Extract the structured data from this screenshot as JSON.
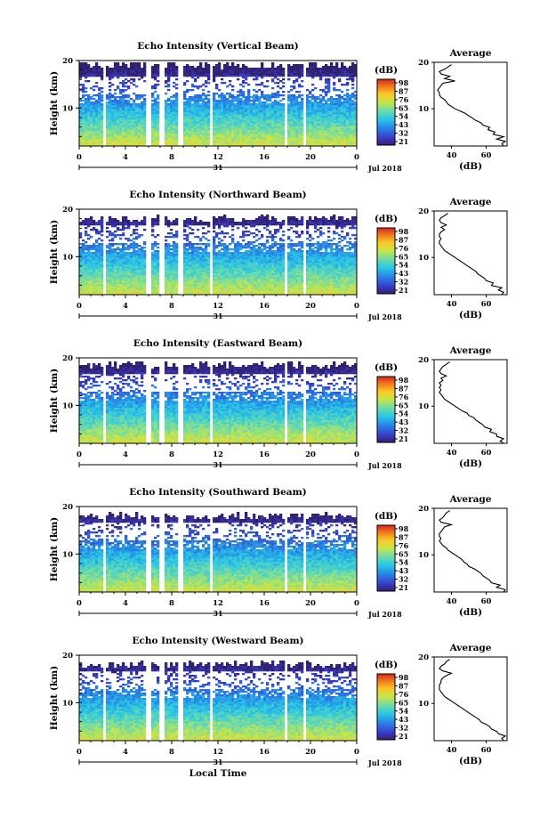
{
  "chart_data": [
    {
      "type": "heatmap",
      "title": "Echo Intensity (Vertical Beam)",
      "ylabel": "Height (km)",
      "ylim": [
        2,
        20
      ],
      "yticks": [
        "20",
        "10"
      ],
      "xticks": [
        "0",
        "4",
        "8",
        "12",
        "16",
        "20",
        "0"
      ],
      "xlim": [
        0,
        24
      ],
      "date_day": "31",
      "date_label": "Jul 2018",
      "colorbar_label": "(dB)",
      "colorbar_ticks": [
        "98",
        "87",
        "76",
        "65",
        "54",
        "43",
        "32",
        "21"
      ],
      "colorbar_range": [
        21,
        98
      ],
      "data_gaps_hours": [
        [
          2.1,
          2.4
        ],
        [
          5.8,
          6.3
        ],
        [
          6.9,
          7.3
        ],
        [
          8.6,
          9.0
        ],
        [
          11.2,
          11.5
        ],
        [
          17.7,
          18.0
        ],
        [
          19.4,
          19.7
        ]
      ],
      "echo_top_km": 19.5,
      "profile": {
        "title": "Average",
        "xlabel": "(dB)",
        "xticks": [
          "40",
          "60"
        ],
        "xlim": [
          30,
          72
        ],
        "ylim": [
          2,
          20
        ],
        "yticks": [
          "20",
          "10"
        ],
        "points": [
          [
            70,
            2
          ],
          [
            69,
            2.5
          ],
          [
            71,
            3
          ],
          [
            66,
            3.5
          ],
          [
            70,
            4
          ],
          [
            64,
            4.5
          ],
          [
            65,
            5
          ],
          [
            61,
            5.5
          ],
          [
            62,
            6
          ],
          [
            58,
            6.5
          ],
          [
            57,
            7
          ],
          [
            54,
            7.5
          ],
          [
            52,
            8
          ],
          [
            50,
            8.5
          ],
          [
            48,
            9
          ],
          [
            45,
            9.5
          ],
          [
            42,
            10
          ],
          [
            40,
            10.5
          ],
          [
            38,
            11
          ],
          [
            37,
            11.5
          ],
          [
            36,
            12
          ],
          [
            34,
            12.5
          ],
          [
            33,
            13
          ],
          [
            33,
            13.5
          ],
          [
            32,
            14
          ],
          [
            33,
            14.5
          ],
          [
            34,
            15
          ],
          [
            35,
            15.5
          ],
          [
            42,
            16
          ],
          [
            36,
            16.5
          ],
          [
            39,
            17
          ],
          [
            34,
            17.5
          ],
          [
            33,
            18
          ],
          [
            36,
            18.5
          ],
          [
            38,
            19
          ],
          [
            40,
            19.5
          ]
        ]
      }
    },
    {
      "type": "heatmap",
      "title": "Echo Intensity (Northward Beam)",
      "ylabel": "Height (km)",
      "ylim": [
        2,
        20
      ],
      "yticks": [
        "20",
        "10"
      ],
      "xticks": [
        "0",
        "4",
        "8",
        "12",
        "16",
        "20",
        "0"
      ],
      "xlim": [
        0,
        24
      ],
      "date_day": "31",
      "date_label": "Jul 2018",
      "colorbar_label": "(dB)",
      "colorbar_ticks": [
        "98",
        "87",
        "76",
        "65",
        "54",
        "43",
        "32",
        "21"
      ],
      "colorbar_range": [
        21,
        98
      ],
      "data_gaps_hours": [
        [
          2.1,
          2.4
        ],
        [
          5.8,
          6.3
        ],
        [
          6.9,
          7.3
        ],
        [
          8.6,
          9.0
        ],
        [
          11.2,
          11.5
        ],
        [
          17.7,
          18.0
        ],
        [
          19.4,
          19.7
        ]
      ],
      "echo_top_km": 18.5,
      "profile": {
        "title": "Average",
        "xlabel": "(dB)",
        "xticks": [
          "40",
          "60"
        ],
        "xlim": [
          30,
          72
        ],
        "ylim": [
          2,
          20
        ],
        "yticks": [
          "20",
          "10"
        ],
        "points": [
          [
            69,
            2
          ],
          [
            70,
            2.5
          ],
          [
            67,
            3
          ],
          [
            69,
            3.5
          ],
          [
            63,
            4
          ],
          [
            64,
            4.5
          ],
          [
            60,
            5
          ],
          [
            59,
            5.5
          ],
          [
            57,
            6
          ],
          [
            55,
            6.5
          ],
          [
            54,
            7
          ],
          [
            52,
            7.5
          ],
          [
            50,
            8
          ],
          [
            48,
            8.5
          ],
          [
            46,
            9
          ],
          [
            44,
            9.5
          ],
          [
            42,
            10
          ],
          [
            40,
            10.5
          ],
          [
            38,
            11
          ],
          [
            36,
            11.5
          ],
          [
            35,
            12
          ],
          [
            34,
            12.5
          ],
          [
            33,
            13
          ],
          [
            33,
            13.5
          ],
          [
            34,
            14
          ],
          [
            33,
            14.5
          ],
          [
            33,
            15
          ],
          [
            34,
            15.5
          ],
          [
            36,
            16
          ],
          [
            34,
            16.5
          ],
          [
            37,
            17
          ],
          [
            34,
            17.5
          ],
          [
            33,
            18
          ],
          [
            34,
            18.5
          ],
          [
            36,
            19
          ],
          [
            38,
            19.5
          ]
        ]
      }
    },
    {
      "type": "heatmap",
      "title": "Echo Intensity (Eastward Beam)",
      "ylabel": "Height (km)",
      "ylim": [
        2,
        20
      ],
      "yticks": [
        "20",
        "10"
      ],
      "xticks": [
        "0",
        "4",
        "8",
        "12",
        "16",
        "20",
        "0"
      ],
      "xlim": [
        0,
        24
      ],
      "date_day": "31",
      "date_label": "Jul 2018",
      "colorbar_label": "(dB)",
      "colorbar_ticks": [
        "98",
        "87",
        "76",
        "65",
        "54",
        "43",
        "32",
        "21"
      ],
      "colorbar_range": [
        21,
        98
      ],
      "data_gaps_hours": [
        [
          2.1,
          2.4
        ],
        [
          5.8,
          6.3
        ],
        [
          6.9,
          7.3
        ],
        [
          8.6,
          9.0
        ],
        [
          11.2,
          11.5
        ],
        [
          17.7,
          18.0
        ],
        [
          19.4,
          19.7
        ]
      ],
      "echo_top_km": 19.0,
      "profile": {
        "title": "Average",
        "xlabel": "(dB)",
        "xticks": [
          "40",
          "60"
        ],
        "xlim": [
          30,
          72
        ],
        "ylim": [
          2,
          20
        ],
        "yticks": [
          "20",
          "10"
        ],
        "points": [
          [
            70,
            2
          ],
          [
            68,
            2.5
          ],
          [
            70,
            3
          ],
          [
            66,
            3.5
          ],
          [
            66,
            4
          ],
          [
            62,
            4.5
          ],
          [
            63,
            5
          ],
          [
            59,
            5.5
          ],
          [
            58,
            6
          ],
          [
            56,
            6.5
          ],
          [
            54,
            7
          ],
          [
            53,
            7.5
          ],
          [
            50,
            8
          ],
          [
            49,
            8.5
          ],
          [
            46,
            9
          ],
          [
            44,
            9.5
          ],
          [
            42,
            10
          ],
          [
            40,
            10.5
          ],
          [
            38,
            11
          ],
          [
            36,
            11.5
          ],
          [
            35,
            12
          ],
          [
            34,
            12.5
          ],
          [
            33,
            13
          ],
          [
            34,
            13.5
          ],
          [
            33,
            14
          ],
          [
            34,
            14.5
          ],
          [
            33,
            15
          ],
          [
            35,
            15.5
          ],
          [
            34,
            16
          ],
          [
            37,
            16.5
          ],
          [
            34,
            17
          ],
          [
            33,
            17.5
          ],
          [
            34,
            18
          ],
          [
            35,
            18.5
          ],
          [
            37,
            19
          ],
          [
            39,
            19.5
          ]
        ]
      }
    },
    {
      "type": "heatmap",
      "title": "Echo Intensity (Southward Beam)",
      "ylabel": "Height (km)",
      "ylim": [
        2,
        20
      ],
      "yticks": [
        "20",
        "10"
      ],
      "xticks": [
        "0",
        "4",
        "8",
        "12",
        "16",
        "20",
        "0"
      ],
      "xlim": [
        0,
        24
      ],
      "date_day": "31",
      "date_label": "Jul 2018",
      "colorbar_label": "(dB)",
      "colorbar_ticks": [
        "98",
        "87",
        "76",
        "65",
        "54",
        "43",
        "32",
        "21"
      ],
      "colorbar_range": [
        21,
        98
      ],
      "data_gaps_hours": [
        [
          2.1,
          2.4
        ],
        [
          5.8,
          6.3
        ],
        [
          6.9,
          7.3
        ],
        [
          8.6,
          9.0
        ],
        [
          11.2,
          11.5
        ],
        [
          17.7,
          18.0
        ],
        [
          19.4,
          19.7
        ]
      ],
      "echo_top_km": 18.5,
      "profile": {
        "title": "Average",
        "xlabel": "(dB)",
        "xticks": [
          "40",
          "60"
        ],
        "xlim": [
          30,
          72
        ],
        "ylim": [
          2,
          20
        ],
        "yticks": [
          "20",
          "10"
        ],
        "points": [
          [
            70,
            2
          ],
          [
            71,
            2.5
          ],
          [
            66,
            3
          ],
          [
            68,
            3.5
          ],
          [
            63,
            4
          ],
          [
            62,
            4.5
          ],
          [
            60,
            5
          ],
          [
            58,
            5.5
          ],
          [
            57,
            6
          ],
          [
            55,
            6.5
          ],
          [
            53,
            7
          ],
          [
            50,
            7.5
          ],
          [
            49,
            8
          ],
          [
            47,
            8.5
          ],
          [
            46,
            9
          ],
          [
            44,
            9.5
          ],
          [
            42,
            10
          ],
          [
            40,
            10.5
          ],
          [
            38,
            11
          ],
          [
            37,
            11.5
          ],
          [
            35,
            12
          ],
          [
            34,
            12.5
          ],
          [
            33,
            13
          ],
          [
            34,
            13.5
          ],
          [
            33,
            14
          ],
          [
            33,
            14.5
          ],
          [
            34,
            15
          ],
          [
            35,
            15.5
          ],
          [
            36,
            16
          ],
          [
            40,
            16.5
          ],
          [
            34,
            17
          ],
          [
            33,
            17.5
          ],
          [
            35,
            18
          ],
          [
            36,
            18.5
          ],
          [
            37,
            19
          ],
          [
            39,
            19.5
          ]
        ]
      }
    },
    {
      "type": "heatmap",
      "title": "Echo Intensity (Westward Beam)",
      "ylabel": "Height (km)",
      "ylim": [
        2,
        20
      ],
      "yticks": [
        "20",
        "10"
      ],
      "xticks": [
        "0",
        "4",
        "8",
        "12",
        "16",
        "20",
        "0"
      ],
      "xlim": [
        0,
        24
      ],
      "date_day": "31",
      "date_label": "Jul 2018",
      "xlabel": "Local Time",
      "colorbar_label": "(dB)",
      "colorbar_ticks": [
        "98",
        "87",
        "76",
        "65",
        "54",
        "43",
        "32",
        "21"
      ],
      "colorbar_range": [
        21,
        98
      ],
      "data_gaps_hours": [
        [
          2.1,
          2.4
        ],
        [
          5.8,
          6.3
        ],
        [
          6.9,
          7.3
        ],
        [
          8.6,
          9.0
        ],
        [
          11.2,
          11.5
        ],
        [
          17.7,
          18.0
        ],
        [
          19.4,
          19.7
        ]
      ],
      "echo_top_km": 18.5,
      "profile": {
        "title": "Average",
        "xlabel": "(dB)",
        "xticks": [
          "40",
          "60"
        ],
        "xlim": [
          30,
          72
        ],
        "ylim": [
          2,
          20
        ],
        "yticks": [
          "20",
          "10"
        ],
        "points": [
          [
            70,
            2
          ],
          [
            69,
            2.5
          ],
          [
            71,
            3
          ],
          [
            67,
            3.5
          ],
          [
            66,
            4
          ],
          [
            63,
            4.5
          ],
          [
            62,
            5
          ],
          [
            60,
            5.5
          ],
          [
            57,
            6
          ],
          [
            56,
            6.5
          ],
          [
            54,
            7
          ],
          [
            52,
            7.5
          ],
          [
            50,
            8
          ],
          [
            48,
            8.5
          ],
          [
            46,
            9
          ],
          [
            44,
            9.5
          ],
          [
            42,
            10
          ],
          [
            40,
            10.5
          ],
          [
            38,
            11
          ],
          [
            36,
            11.5
          ],
          [
            35,
            12
          ],
          [
            34,
            12.5
          ],
          [
            33,
            13
          ],
          [
            33,
            13.5
          ],
          [
            33,
            14
          ],
          [
            34,
            14.5
          ],
          [
            34,
            15
          ],
          [
            35,
            15.5
          ],
          [
            37,
            16
          ],
          [
            40,
            16.5
          ],
          [
            35,
            17
          ],
          [
            33,
            17.5
          ],
          [
            34,
            18
          ],
          [
            36,
            18.5
          ],
          [
            37,
            19
          ],
          [
            39,
            19.5
          ]
        ]
      }
    }
  ]
}
